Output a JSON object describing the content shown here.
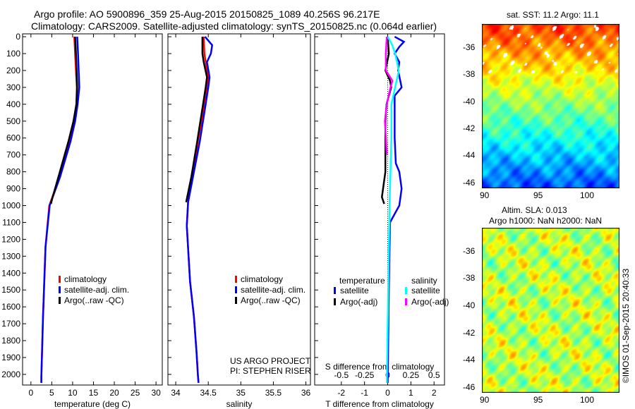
{
  "header": {
    "line1": "Argo profile: AO 5900896_359 25-Aug-2015 20150825_1089 40.256S 96.217E",
    "line2": "Climatology: CARS2009. Satellite-adjusted climatology: synTS_20150825.nc (0.064d earlier)"
  },
  "colors": {
    "climatology": "#ff0000",
    "satellite": "#0000ff",
    "argo": "#000000",
    "sal_satellite": "#00ffff",
    "sal_argo": "#ff00ff"
  },
  "chart_data": [
    {
      "type": "line",
      "name": "temperature",
      "xlabel": "temperature (deg C)",
      "xlim": [
        -2,
        31.5
      ],
      "ylim": [
        2063,
        -17
      ],
      "xticks": [
        0,
        5,
        10,
        15,
        20,
        25,
        30
      ],
      "yticks": [
        0,
        100,
        200,
        300,
        400,
        500,
        600,
        700,
        800,
        900,
        1000,
        1100,
        1200,
        1300,
        1400,
        1500,
        1600,
        1700,
        1800,
        1900,
        2000
      ],
      "legend": [
        "climatology",
        "satellite-adj. clim.",
        "Argo(..raw -QC)"
      ],
      "series": [
        {
          "name": "climatology",
          "color": "#ff0000",
          "depth": [
            0,
            100,
            300,
            400,
            500,
            620,
            830,
            1000,
            1245,
            1660,
            2015,
            2050
          ],
          "values": [
            10.4,
            10.6,
            11.0,
            10.9,
            10.3,
            9.2,
            6.9,
            4.4,
            3.5,
            2.9,
            2.5,
            2.5
          ]
        },
        {
          "name": "satellite-adj. clim.",
          "color": "#0000ff",
          "depth": [
            0,
            100,
            300,
            400,
            500,
            620,
            830,
            1000,
            1245,
            1660,
            2015,
            2050
          ],
          "values": [
            11.1,
            11.3,
            11.6,
            11.2,
            10.6,
            9.5,
            7.0,
            4.5,
            3.5,
            2.9,
            2.5,
            2.5
          ]
        },
        {
          "name": "Argo(..raw -QC)",
          "color": "#000000",
          "depth": [
            0,
            100,
            300,
            400,
            500,
            620,
            830,
            950,
            990
          ],
          "values": [
            10.6,
            10.8,
            11.1,
            10.9,
            10.2,
            9.0,
            6.6,
            5.2,
            4.8
          ]
        }
      ],
      "annotation": []
    },
    {
      "type": "line",
      "name": "salinity",
      "xlabel": "salinity",
      "xlim": [
        33.88,
        36.07
      ],
      "ylim": [
        2063,
        -17
      ],
      "xticks": [
        34,
        34.5,
        35,
        35.5,
        36
      ],
      "legend": [
        "climatology",
        "satellite-adj. clim.",
        "Argo(..raw -QC)"
      ],
      "series": [
        {
          "name": "climatology",
          "color": "#ff0000",
          "depth": [
            0,
            100,
            240,
            300,
            400,
            620,
            980,
            1120,
            1450,
            1660,
            1870,
            2000,
            2050
          ],
          "values": [
            34.43,
            34.44,
            34.5,
            34.48,
            34.44,
            34.34,
            34.19,
            34.17,
            34.22,
            34.28,
            34.32,
            34.34,
            34.35
          ]
        },
        {
          "name": "satellite-adj. clim.",
          "color": "#0000ff",
          "depth": [
            0,
            50,
            100,
            150,
            240,
            300,
            400,
            620,
            980,
            1120,
            1450,
            1660,
            1870,
            2000,
            2050
          ],
          "values": [
            34.45,
            34.56,
            34.54,
            34.48,
            34.52,
            34.5,
            34.46,
            34.37,
            34.19,
            34.17,
            34.22,
            34.28,
            34.32,
            34.34,
            34.35
          ]
        },
        {
          "name": "Argo(..raw -QC)",
          "color": "#000000",
          "depth": [
            0,
            100,
            150,
            240,
            300,
            400,
            620,
            830,
            980
          ],
          "values": [
            34.41,
            34.41,
            34.43,
            34.48,
            34.46,
            34.42,
            34.33,
            34.24,
            34.16
          ]
        }
      ],
      "annotation": [
        "US ARGO PROJECT",
        "PI: STEPHEN RISER"
      ]
    },
    {
      "type": "line",
      "name": "difference",
      "xlabel": "T difference from climatology",
      "xlabel_top": "S difference from climatology",
      "xlim": [
        -3.15,
        2.45
      ],
      "xticks": [
        -2,
        -1,
        0,
        1,
        2
      ],
      "xticks_s": [
        -0.5,
        -0.25,
        0,
        0.25,
        0.5
      ],
      "xtick_labels_s": [
        "-0.5",
        "-0.25",
        "0",
        "0.25",
        "0.5"
      ],
      "legend_headers": [
        "temperature",
        "salinity"
      ],
      "legend": [
        "satellite",
        "Argo(-adj)",
        "satellite",
        "Argo(-adj)"
      ],
      "series": [
        {
          "name": "T satellite",
          "color": "#0000ff",
          "unit": "T",
          "depth": [
            0,
            30,
            60,
            100,
            150,
            200,
            300,
            350,
            400,
            600,
            750,
            800,
            900,
            1000,
            1100,
            1500,
            2050
          ],
          "values": [
            0.3,
            0.7,
            0.5,
            0.3,
            0.5,
            0.45,
            0.6,
            0.3,
            0.3,
            0.3,
            0.35,
            0.5,
            0.6,
            0.5,
            0.1,
            0.05,
            0.0
          ]
        },
        {
          "name": "T Argo(-adj)",
          "color": "#000000",
          "unit": "T",
          "depth": [
            0,
            100,
            200,
            260,
            300,
            400,
            500,
            600,
            800,
            850,
            900,
            950,
            990
          ],
          "values": [
            0.0,
            0.05,
            -0.1,
            0.1,
            0.15,
            -0.05,
            -0.1,
            -0.1,
            -0.1,
            -0.15,
            -0.2,
            -0.25,
            -0.15
          ]
        },
        {
          "name": "S satellite",
          "color": "#00ffff",
          "unit": "S",
          "depth": [
            0,
            50,
            100,
            200,
            300,
            400,
            600,
            800,
            1000,
            2050
          ],
          "values": [
            0.0,
            0.05,
            0.08,
            0.12,
            0.08,
            0.04,
            0.04,
            0.03,
            0.02,
            -0.01
          ]
        },
        {
          "name": "S Argo(-adj)",
          "color": "#ff00ff",
          "unit": "S",
          "depth": [
            0,
            100,
            200,
            260,
            300,
            400,
            500,
            600,
            700
          ],
          "values": [
            -0.01,
            -0.02,
            -0.02,
            0.05,
            0.03,
            -0.01,
            -0.03,
            -0.02,
            -0.01
          ]
        }
      ]
    }
  ],
  "maps": {
    "sst": {
      "title": "sat. SST: 11.2 Argo: 11.1",
      "yticks": [
        "-36",
        "-38",
        "-40",
        "-42",
        "-44",
        "-46"
      ],
      "xticks": [
        "90",
        "95",
        "100"
      ]
    },
    "sla": {
      "title1": "Altim. SLA: 0.013",
      "title2": "Argo h1000: NaN h2000: NaN",
      "yticks": [
        "-36",
        "-38",
        "-40",
        "-42",
        "-44",
        "-46"
      ],
      "xticks": [
        "90",
        "95",
        "100"
      ]
    }
  },
  "footer": {
    "stamp": "©IMOS 01-Sep-2015 20:40:33"
  }
}
